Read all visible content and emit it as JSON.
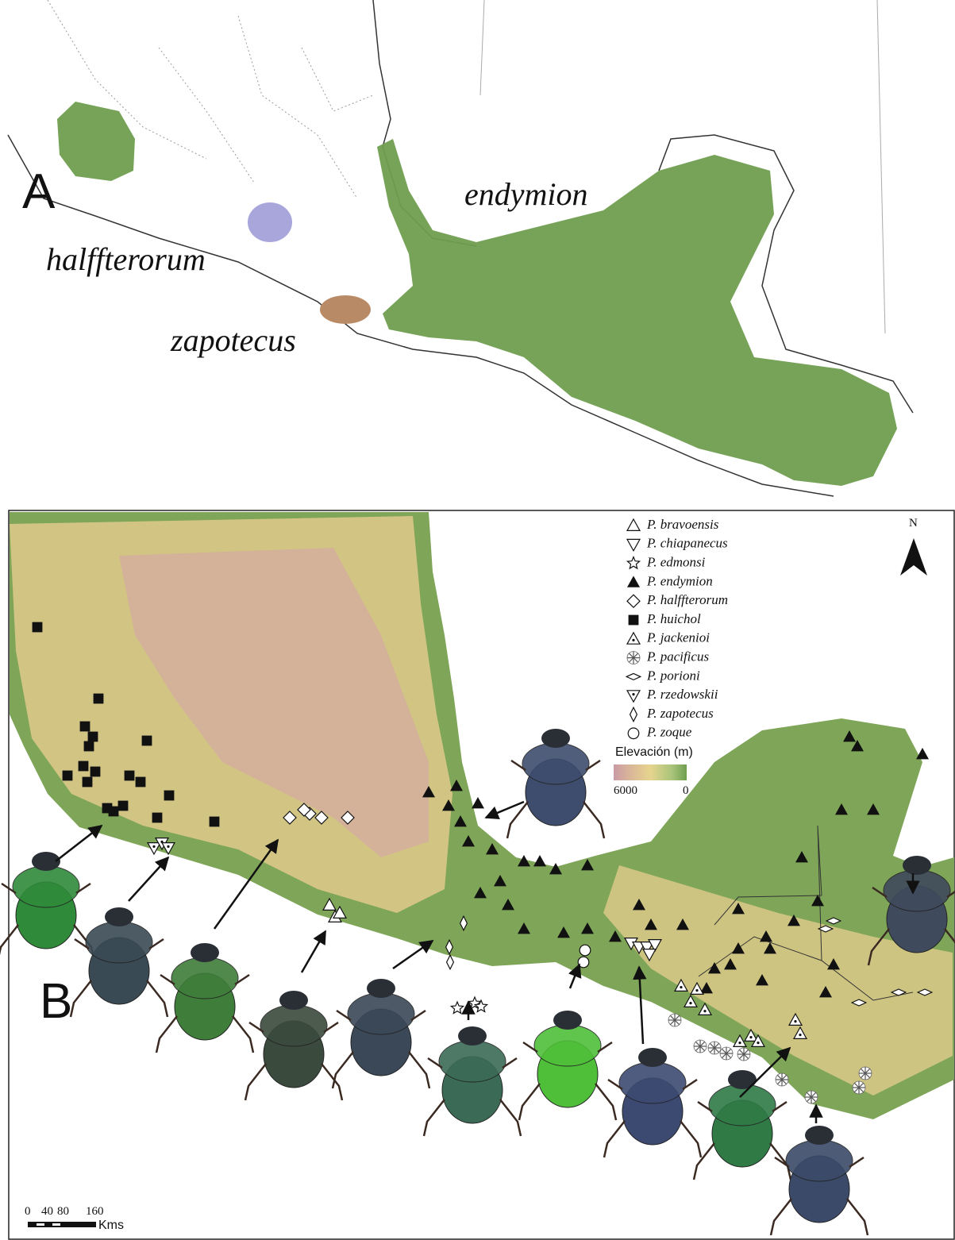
{
  "panel_a": {
    "label": "A",
    "ranges": [
      "halffterorum",
      "zapotecus",
      "endymion"
    ]
  },
  "panel_b": {
    "label": "B",
    "legend": [
      "P. bravoensis",
      "P. chiapanecus",
      "P. edmonsi",
      "P. endymion",
      "P. halffterorum",
      "P. huichol",
      "P. jackenioi",
      "P. pacificus",
      "P. porioni",
      "P. rzedowskii",
      "P. zapotecus",
      "P. zoque"
    ],
    "elevation": {
      "title": "Elevación (m)",
      "high": 6000,
      "low": 0
    },
    "north": "N",
    "scale": {
      "ticks": [
        0,
        40,
        80,
        160
      ],
      "unit": "Kms"
    }
  }
}
